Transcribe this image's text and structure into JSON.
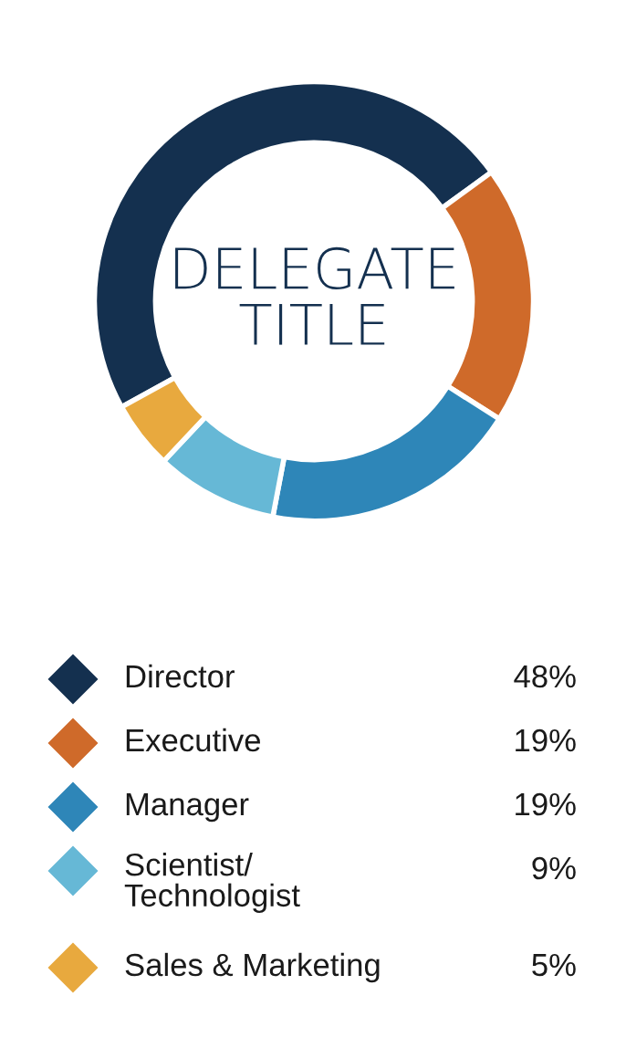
{
  "chart_data": {
    "type": "donut",
    "title": "DELEGATE\nTITLE",
    "categories": [
      "Director",
      "Executive",
      "Manager",
      "Scientist/\nTechnologist",
      "Sales & Marketing"
    ],
    "values": [
      48,
      19,
      19,
      9,
      5
    ],
    "colors": [
      "#14304f",
      "#cf6a2a",
      "#2e86b8",
      "#66b8d6",
      "#e8a93e"
    ],
    "value_labels": [
      "48%",
      "19%",
      "19%",
      "9%",
      "5%"
    ],
    "legend": "bottom",
    "marker": "diamond"
  }
}
